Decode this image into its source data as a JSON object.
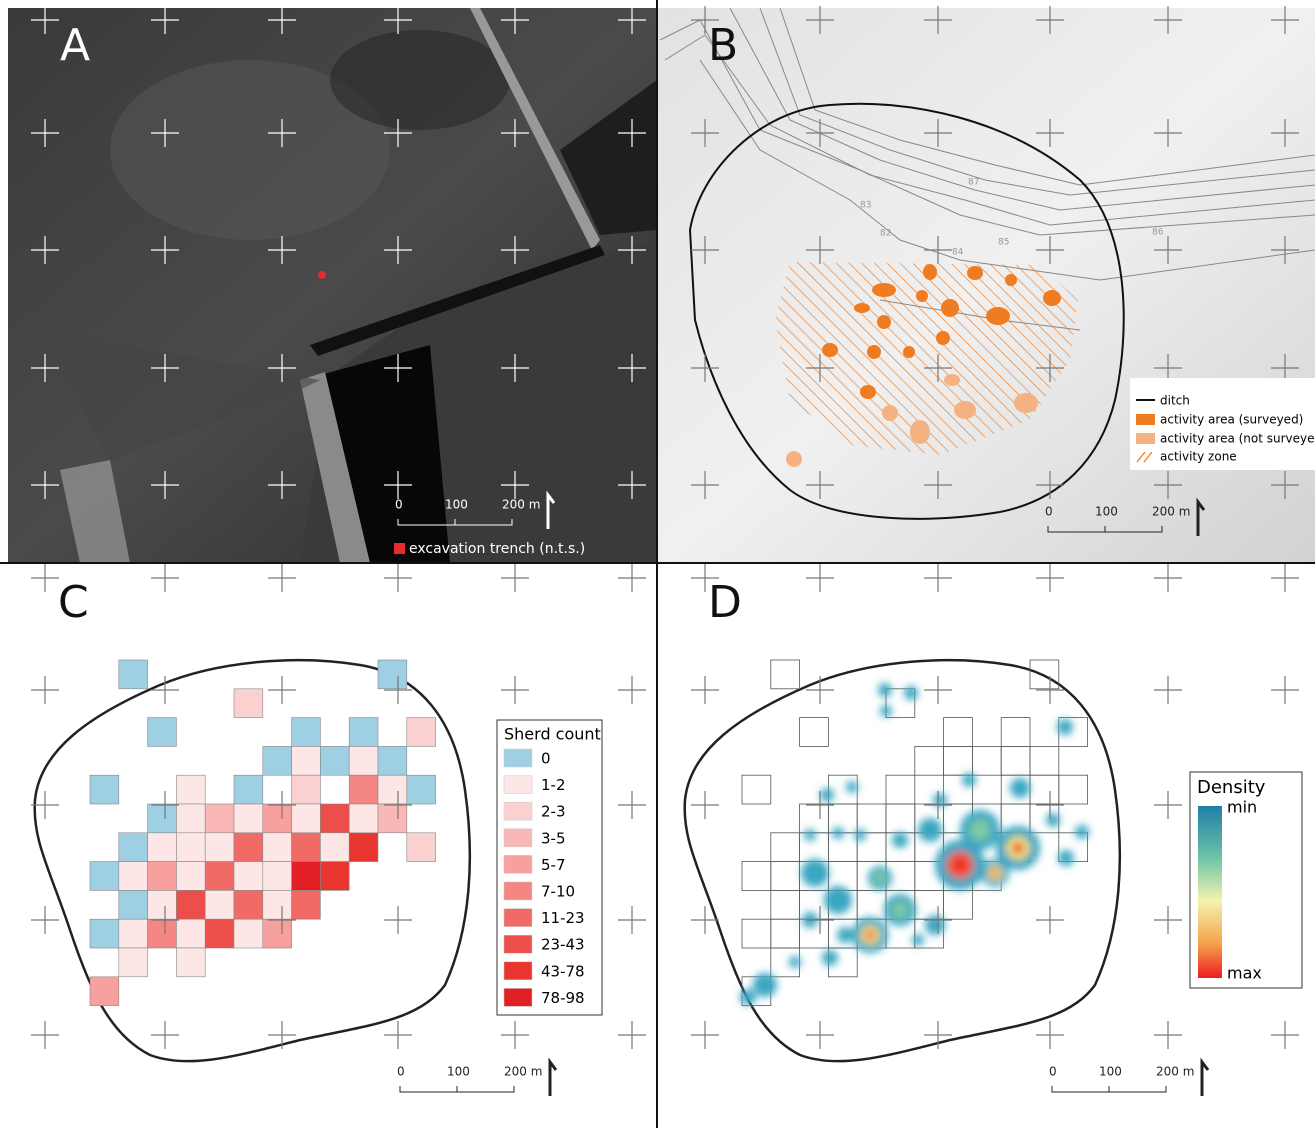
{
  "panels": [
    {
      "label": "A",
      "scale_bar": [
        "0",
        "100",
        "200 m"
      ],
      "legend": [
        "excavation trench (n.t.s.)"
      ]
    },
    {
      "label": "B",
      "contour_labels": [
        "87",
        "83",
        "82",
        "84",
        "85",
        "86"
      ],
      "legend": [
        "ditch",
        "activity area (surveyed)",
        "activity area (not surveyed)",
        "activity zone"
      ],
      "scale_bar": [
        "0",
        "100",
        "200 m"
      ]
    },
    {
      "label": "C",
      "legend": {
        "title": "Sherd count",
        "items": [
          "0",
          "1-2",
          "2-3",
          "3-5",
          "5-7",
          "7-10",
          "11-23",
          "23-43",
          "43-78",
          "78-98"
        ]
      },
      "scale_bar": [
        "0",
        "100",
        "200 m"
      ]
    },
    {
      "label": "D",
      "legend": {
        "title": "Density",
        "min": "min",
        "max": "max"
      },
      "scale_bar": [
        "0",
        "100",
        "200 m"
      ]
    }
  ]
}
